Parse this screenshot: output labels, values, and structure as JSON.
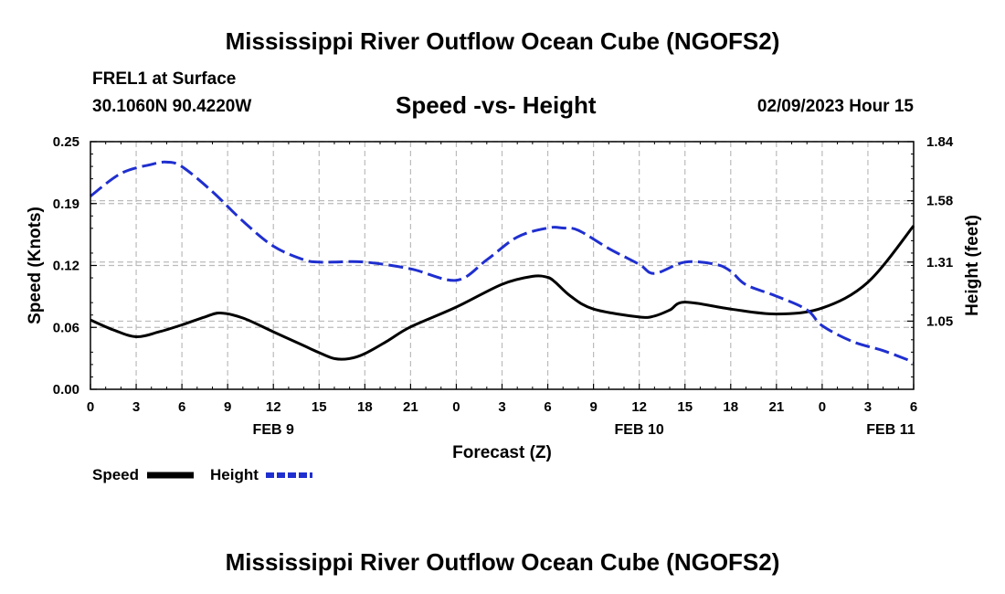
{
  "header": {
    "title": "Mississippi River Outflow Ocean Cube (NGOFS2)",
    "station": "FREL1 at Surface",
    "coords": "30.1060N  90.4220W",
    "subtitle": "Speed -vs- Height",
    "timestamp": "02/09/2023 Hour 15"
  },
  "footer": {
    "title": "Mississippi River Outflow Ocean Cube (NGOFS2)"
  },
  "legend": {
    "speed_label": "Speed",
    "height_label": "Height"
  },
  "chart_data": {
    "type": "line",
    "title": "Speed -vs- Height",
    "xlabel": "Forecast (Z)",
    "ylabel": "Speed (Knots)",
    "y2label": "Height (feet)",
    "xlim": [
      0,
      54
    ],
    "ylim": [
      0,
      0.25
    ],
    "y2lim": [
      0.75,
      1.84
    ],
    "x_tick_values": [
      0,
      3,
      6,
      9,
      12,
      15,
      18,
      21,
      24,
      27,
      30,
      33,
      36,
      39,
      42,
      45,
      48,
      51,
      54
    ],
    "x_tick_labels": [
      "0",
      "3",
      "6",
      "9",
      "12",
      "15",
      "18",
      "21",
      "0",
      "3",
      "6",
      "9",
      "12",
      "15",
      "18",
      "21",
      "0",
      "3",
      "6"
    ],
    "date_labels": [
      {
        "x": 12,
        "label": "FEB 9"
      },
      {
        "x": 36,
        "label": "FEB 10"
      },
      {
        "x": 52.5,
        "label": "FEB 11"
      }
    ],
    "y_ticks": [
      0,
      0.0625,
      0.125,
      0.1875,
      0.25
    ],
    "y_tick_labels": [
      "0.00",
      "0.06",
      "0.12",
      "0.19",
      "0.25"
    ],
    "y2_ticks": [
      1.05,
      1.31,
      1.58,
      1.84
    ],
    "y2_tick_labels": [
      "1.05",
      "1.31",
      "1.58",
      "1.84"
    ],
    "grid": true,
    "series": [
      {
        "name": "Speed",
        "axis": "left",
        "color": "#000000",
        "style": "solid",
        "x": [
          0,
          1.5,
          3,
          4.5,
          6,
          7.5,
          8.5,
          10,
          12,
          14,
          15,
          16,
          17,
          18,
          19.5,
          21,
          24,
          27,
          29,
          30,
          30.5,
          31.5,
          33,
          36,
          37,
          38,
          39,
          42,
          45,
          48,
          51,
          54
        ],
        "values": [
          0.07,
          0.06,
          0.053,
          0.058,
          0.065,
          0.073,
          0.077,
          0.072,
          0.058,
          0.044,
          0.037,
          0.031,
          0.031,
          0.036,
          0.049,
          0.063,
          0.083,
          0.106,
          0.114,
          0.113,
          0.108,
          0.094,
          0.081,
          0.073,
          0.074,
          0.08,
          0.088,
          0.081,
          0.076,
          0.082,
          0.108,
          0.165
        ]
      },
      {
        "name": "Height",
        "axis": "right",
        "color": "#1f2fcf",
        "style": "dashed",
        "x": [
          0,
          2,
          4,
          5,
          6,
          8,
          10,
          12,
          14,
          15,
          16,
          18,
          21,
          24,
          26,
          28,
          30,
          31,
          32,
          34,
          36,
          37,
          39,
          41,
          42,
          43,
          45,
          47,
          48,
          50,
          52,
          54
        ],
        "values": [
          1.6,
          1.7,
          1.74,
          1.75,
          1.73,
          1.62,
          1.49,
          1.38,
          1.32,
          1.31,
          1.31,
          1.31,
          1.28,
          1.23,
          1.32,
          1.42,
          1.46,
          1.46,
          1.45,
          1.37,
          1.3,
          1.26,
          1.31,
          1.3,
          1.27,
          1.21,
          1.16,
          1.1,
          1.03,
          0.96,
          0.92,
          0.87
        ]
      }
    ]
  }
}
